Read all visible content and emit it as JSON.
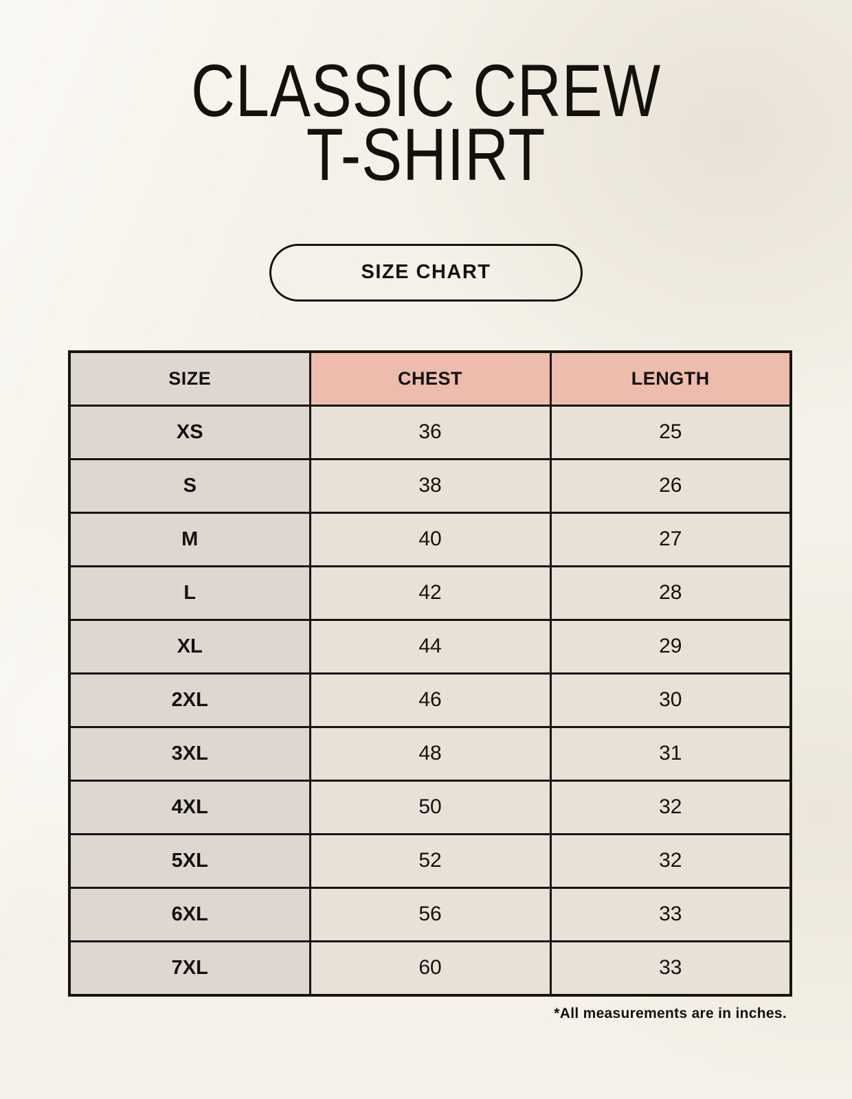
{
  "header": {
    "title_line1": "CLASSIC CREW",
    "title_line2": "T-SHIRT",
    "badge_label": "SIZE CHART"
  },
  "chart_data": {
    "type": "table",
    "title": "CLASSIC CREW T-SHIRT",
    "subtitle": "SIZE CHART",
    "columns": [
      "SIZE",
      "CHEST",
      "LENGTH"
    ],
    "rows": [
      [
        "XS",
        "36",
        "25"
      ],
      [
        "S",
        "38",
        "26"
      ],
      [
        "M",
        "40",
        "27"
      ],
      [
        "L",
        "42",
        "28"
      ],
      [
        "XL",
        "44",
        "29"
      ],
      [
        "2XL",
        "46",
        "30"
      ],
      [
        "3XL",
        "48",
        "31"
      ],
      [
        "4XL",
        "50",
        "32"
      ],
      [
        "5XL",
        "52",
        "32"
      ],
      [
        "6XL",
        "56",
        "33"
      ],
      [
        "7XL",
        "60",
        "33"
      ]
    ],
    "units": "inches"
  },
  "footer": {
    "note": "*All measurements are in inches."
  },
  "colors": {
    "page_background": "#f5f1e8",
    "accent_header": "#edbcad",
    "size_column": "#ded6d0",
    "value_cell": "#e8e1d7",
    "border": "#17130e",
    "text": "#14110d"
  }
}
